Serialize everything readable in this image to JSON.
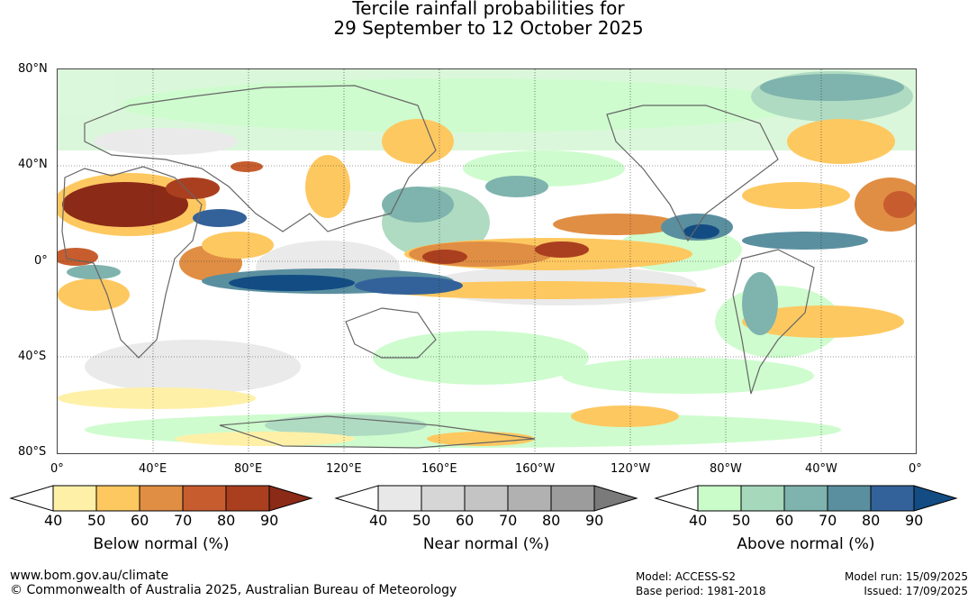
{
  "title_line1": "Tercile rainfall probabilities for",
  "title_line2": "29 September to 12 October 2025",
  "lat_labels": [
    "80°N",
    "40°N",
    "0°",
    "40°S",
    "80°S"
  ],
  "lon_labels": [
    "0°",
    "40°E",
    "80°E",
    "120°E",
    "160°E",
    "160°W",
    "120°W",
    "80°W",
    "40°W",
    "0°"
  ],
  "colorbars": [
    {
      "title": "Below normal (%)",
      "ticks": [
        "40",
        "50",
        "60",
        "70",
        "80",
        "90"
      ],
      "colors": [
        "#fff0a8",
        "#fec860",
        "#e08e44",
        "#c75d2e",
        "#aa3f1f",
        "#8b2a17"
      ]
    },
    {
      "title": "Near normal (%)",
      "ticks": [
        "40",
        "50",
        "60",
        "70",
        "80",
        "90"
      ],
      "colors": [
        "#e8e8e8",
        "#d6d6d6",
        "#c4c4c4",
        "#b1b1b1",
        "#9c9c9c",
        "#7a7a7a"
      ]
    },
    {
      "title": "Above normal (%)",
      "ticks": [
        "40",
        "50",
        "60",
        "70",
        "80",
        "90"
      ],
      "colors": [
        "#c9fcc9",
        "#a6d8bb",
        "#7fb3ad",
        "#5a8fa0",
        "#33629a",
        "#134c83"
      ]
    }
  ],
  "footer": {
    "url": "www.bom.gov.au/climate",
    "copyright": "© Commonwealth of Australia 2025, Australian Bureau of Meteorology",
    "model": "Model: ACCESS-S2",
    "base_period": "Base period: 1981-2018",
    "model_run": "Model run: 15/09/2025",
    "issued": "Issued: 17/09/2025"
  }
}
